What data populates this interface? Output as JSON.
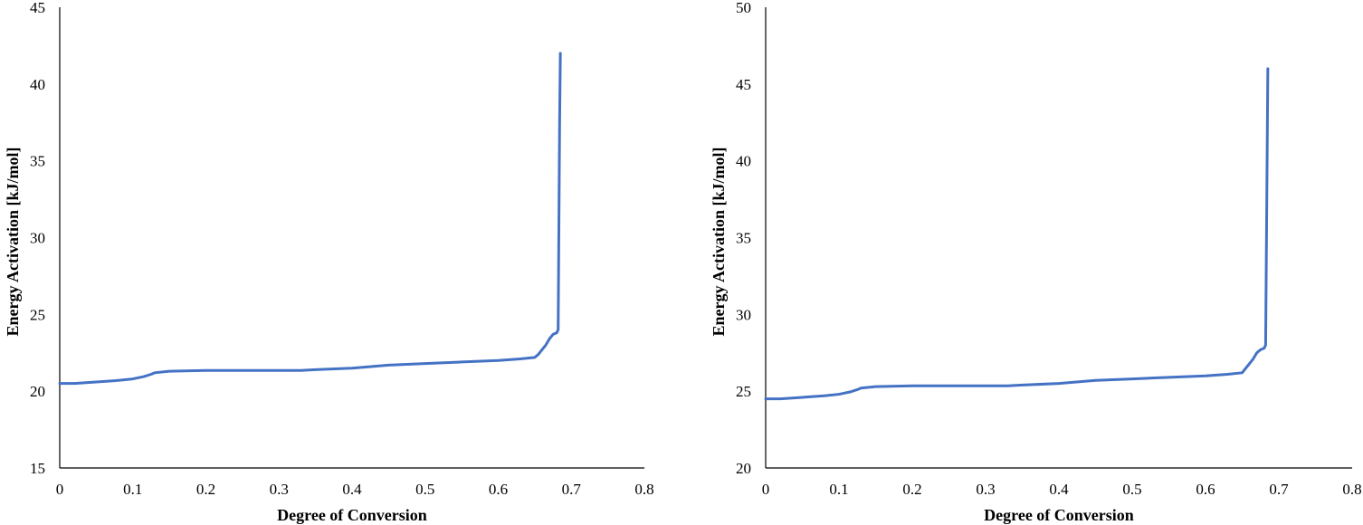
{
  "chart_data": [
    {
      "type": "line",
      "title": "",
      "xlabel": "Degree of Conversion",
      "ylabel": "Energy  Activation  [kJ/mol]",
      "xlim": [
        0,
        0.8
      ],
      "ylim": [
        15,
        45
      ],
      "xticks": [
        "0",
        "0.1",
        "0.2",
        "0.3",
        "0.4",
        "0.5",
        "0.6",
        "0.7",
        "0.8"
      ],
      "yticks": [
        "15",
        "20",
        "25",
        "30",
        "35",
        "40",
        "45"
      ],
      "grid": false,
      "legend": "none",
      "series_color": "#4472C4",
      "series": [
        {
          "x": [
            0,
            0.02,
            0.05,
            0.08,
            0.1,
            0.115,
            0.125,
            0.13,
            0.15,
            0.2,
            0.25,
            0.3,
            0.33,
            0.35,
            0.4,
            0.45,
            0.5,
            0.55,
            0.6,
            0.63,
            0.65,
            0.655,
            0.66,
            0.665,
            0.67,
            0.675,
            0.68,
            0.682,
            0.684,
            0.685
          ],
          "y": [
            20.5,
            20.5,
            20.6,
            20.7,
            20.8,
            20.95,
            21.1,
            21.2,
            21.3,
            21.35,
            21.35,
            21.35,
            21.35,
            21.4,
            21.5,
            21.7,
            21.8,
            21.9,
            22.0,
            22.1,
            22.2,
            22.4,
            22.7,
            23.0,
            23.4,
            23.7,
            23.8,
            24.0,
            37.5,
            42.0
          ]
        }
      ]
    },
    {
      "type": "line",
      "title": "",
      "xlabel": "Degree of Conversion",
      "ylabel": "Energy  Activation  [kJ/mol]",
      "xlim": [
        0,
        0.8
      ],
      "ylim": [
        20,
        50
      ],
      "xticks": [
        "0",
        "0.1",
        "0.2",
        "0.3",
        "0.4",
        "0.5",
        "0.6",
        "0.7",
        "0.8"
      ],
      "yticks": [
        "20",
        "25",
        "30",
        "35",
        "40",
        "45",
        "50"
      ],
      "grid": false,
      "legend": "none",
      "series_color": "#4472C4",
      "series": [
        {
          "x": [
            0,
            0.02,
            0.05,
            0.08,
            0.1,
            0.115,
            0.125,
            0.13,
            0.15,
            0.2,
            0.25,
            0.3,
            0.33,
            0.35,
            0.4,
            0.45,
            0.5,
            0.55,
            0.6,
            0.63,
            0.65,
            0.655,
            0.66,
            0.665,
            0.67,
            0.675,
            0.68,
            0.682,
            0.684,
            0.685
          ],
          "y": [
            24.5,
            24.5,
            24.6,
            24.7,
            24.8,
            24.95,
            25.1,
            25.2,
            25.3,
            25.35,
            25.35,
            25.35,
            25.35,
            25.4,
            25.5,
            25.7,
            25.8,
            25.9,
            26.0,
            26.1,
            26.2,
            26.5,
            26.8,
            27.1,
            27.5,
            27.7,
            27.8,
            28.0,
            40.0,
            46.0
          ]
        }
      ]
    }
  ]
}
